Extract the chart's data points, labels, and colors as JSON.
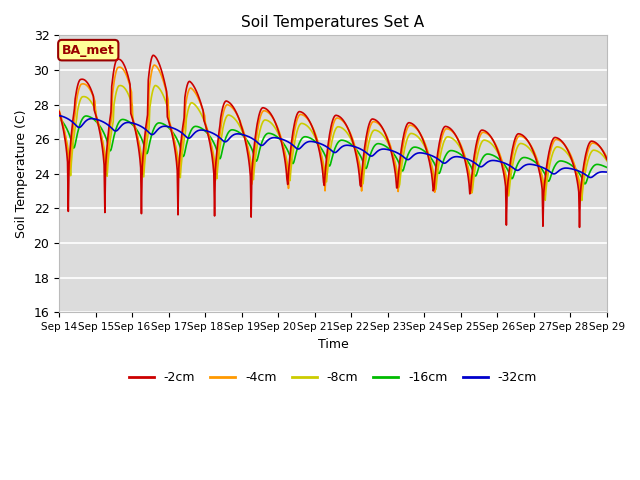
{
  "title": "Soil Temperatures Set A",
  "xlabel": "Time",
  "ylabel": "Soil Temperature (C)",
  "ylim": [
    16,
    32
  ],
  "yticks": [
    16,
    18,
    20,
    22,
    24,
    26,
    28,
    30,
    32
  ],
  "xtick_labels": [
    "Sep 14",
    "Sep 15",
    "Sep 16",
    "Sep 17",
    "Sep 18",
    "Sep 19",
    "Sep 20",
    "Sep 21",
    "Sep 22",
    "Sep 23",
    "Sep 24",
    "Sep 25",
    "Sep 26",
    "Sep 27",
    "Sep 28",
    "Sep 29"
  ],
  "legend_labels": [
    "-2cm",
    "-4cm",
    "-8cm",
    "-16cm",
    "-32cm"
  ],
  "line_colors": [
    "#cc0000",
    "#ff9900",
    "#cccc00",
    "#00bb00",
    "#0000cc"
  ],
  "background_color": "#dcdcdc",
  "figure_color": "#ffffff",
  "annotation_text": "BA_met",
  "annotation_color": "#990000",
  "annotation_bg": "#ffff99",
  "n_points": 720
}
